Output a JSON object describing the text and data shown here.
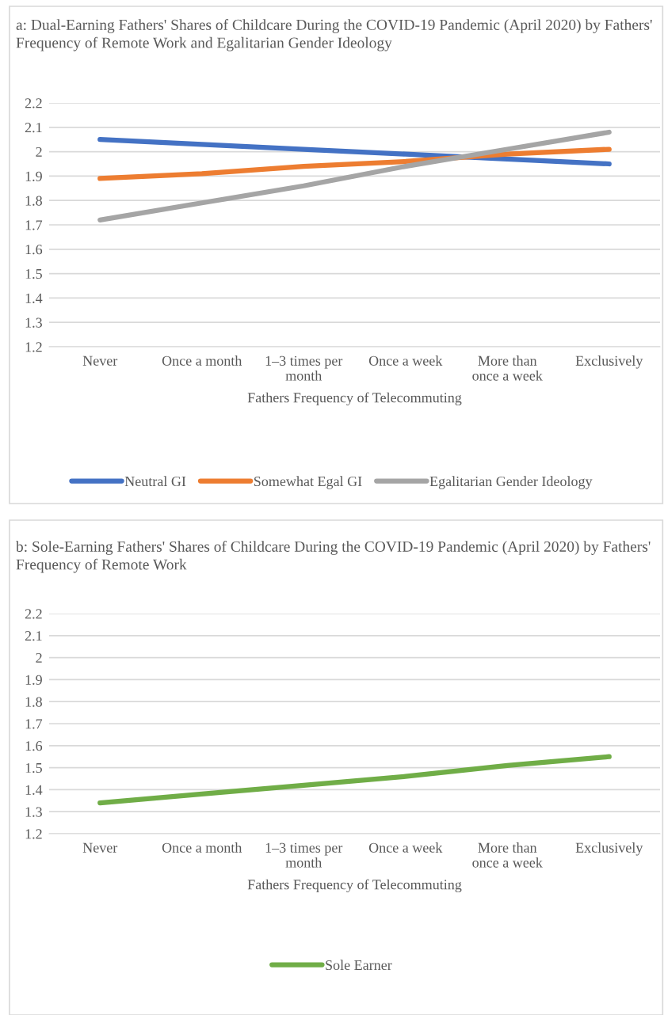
{
  "chart_data": [
    {
      "type": "line",
      "title": "a: Dual-Earning Fathers' Shares of Childcare During the COVID-19 Pandemic (April 2020) by Fathers' Frequency of Remote Work and Egalitarian Gender Ideology",
      "categories": [
        "Never",
        "Once a month",
        "1–3 times per\nmonth",
        "Once a week",
        "More than\nonce a week",
        "Exclusively"
      ],
      "xlabel": "Fathers Frequency of Telecommuting",
      "series": [
        {
          "name": "Neutral GI",
          "color": "#4472c4",
          "values": [
            2.05,
            2.03,
            2.01,
            1.99,
            1.97,
            1.95
          ]
        },
        {
          "name": "Somewhat Egal GI",
          "color": "#ed7d31",
          "values": [
            1.89,
            1.91,
            1.94,
            1.96,
            1.99,
            2.01
          ]
        },
        {
          "name": "Egalitarian Gender Ideology",
          "color": "#a5a5a5",
          "values": [
            1.72,
            1.79,
            1.86,
            1.94,
            2.01,
            2.08
          ]
        }
      ],
      "ylim": [
        1.2,
        2.2
      ],
      "yticks": [
        1.2,
        1.3,
        1.4,
        1.5,
        1.6,
        1.7,
        1.8,
        1.9,
        {
          "value": 2.0,
          "label": "2"
        },
        2.1,
        2.2
      ],
      "grid": "y",
      "legend": "bottom",
      "marker": "none",
      "line_style": "solid"
    },
    {
      "type": "line",
      "title": "b: Sole-Earning Fathers' Shares of Childcare During the COVID-19 Pandemic (April 2020) by Fathers' Frequency of Remote Work",
      "categories": [
        "Never",
        "Once a month",
        "1–3 times per\nmonth",
        "Once a week",
        "More than\nonce a week",
        "Exclusively"
      ],
      "xlabel": "Fathers Frequency of Telecommuting",
      "series": [
        {
          "name": "Sole Earner",
          "color": "#70ad47",
          "values": [
            1.34,
            1.38,
            1.42,
            1.46,
            1.51,
            1.55
          ]
        }
      ],
      "ylim": [
        1.2,
        2.2
      ],
      "yticks": [
        1.2,
        1.3,
        1.4,
        1.5,
        1.6,
        1.7,
        1.8,
        1.9,
        {
          "value": 2.0,
          "label": "2"
        },
        2.1,
        2.2
      ],
      "grid": "y",
      "legend": "bottom",
      "marker": "none",
      "line_style": "solid"
    }
  ]
}
